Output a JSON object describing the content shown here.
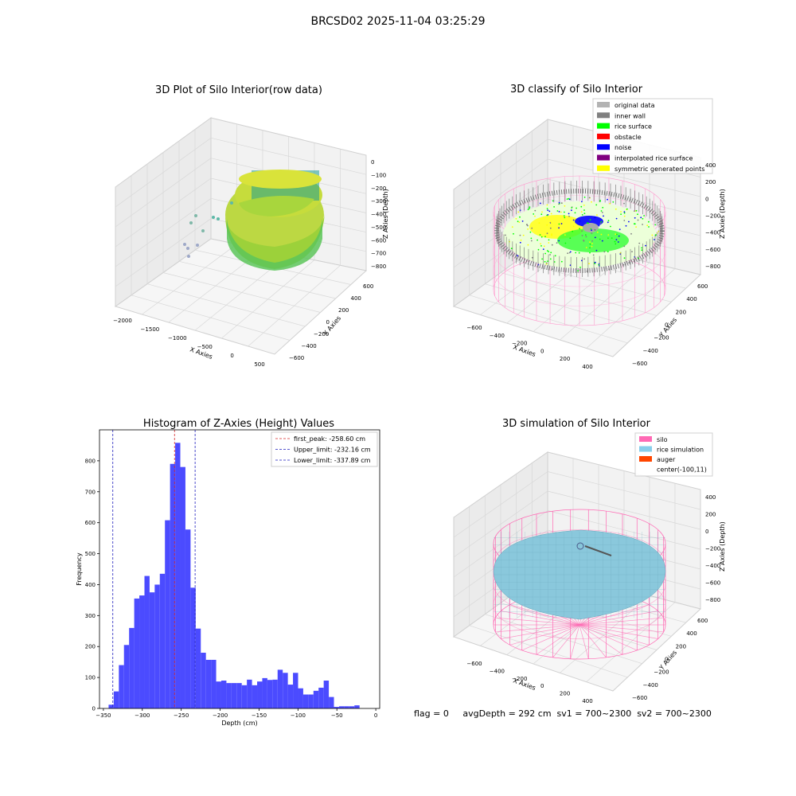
{
  "figure_title": "BRCSD02 2025-11-04 03:25:29",
  "status_line": "flag = 0     avgDepth = 292 cm  sv1 = 700~2300  sv2 = 700~2300",
  "colors": {
    "hist_bar": "#4b4bff",
    "first_peak_line": "#d62728",
    "limit_line": "#1f1fbf",
    "silo": "#ff69b4",
    "rice": "#87ceeb",
    "auger": "#ff4500",
    "original": "#b3b3b3",
    "inner_wall": "#808080",
    "rice_surface": "#00ff00",
    "obstacle": "#ff0000",
    "noise": "#0000ff",
    "interpolated": "#800080",
    "symmetric": "#ffff00"
  },
  "chart_data": [
    {
      "type": "scatter3d",
      "title": "3D Plot of Silo Interior(row data)",
      "xlabel": "X Axies",
      "ylabel": "Y Axies",
      "zlabel": "Z Axies (Depth)",
      "x_ticks": [
        "−2000",
        "−1500",
        "−1000",
        "−500",
        "0",
        "500"
      ],
      "y_ticks": [
        "600",
        "400",
        "200",
        "0",
        "−200",
        "−400",
        "−600"
      ],
      "z_ticks": [
        "0",
        "−100",
        "−200",
        "−300",
        "−400",
        "−500",
        "−600",
        "−700",
        "−800"
      ]
    },
    {
      "type": "scatter3d",
      "title": "3D classify of Silo Interior",
      "xlabel": "X Axies",
      "ylabel": "Y Axies",
      "zlabel": "Z Axies (Depth)",
      "x_ticks": [
        "−600",
        "−400",
        "−200",
        "0",
        "200",
        "400"
      ],
      "y_ticks": [
        "600",
        "400",
        "200",
        "0",
        "−200",
        "−400",
        "−600"
      ],
      "z_ticks": [
        "400",
        "200",
        "0",
        "−200",
        "−400",
        "−600",
        "−800"
      ],
      "legend": [
        "original data",
        "inner wall",
        "rice surface",
        "obstacle",
        "noise",
        "interpolated rice surface",
        "symmetric generated points"
      ]
    },
    {
      "type": "bar",
      "title": "Histogram of Z-Axies (Height) Values",
      "xlabel": "Depth (cm)",
      "ylabel": "Frequency",
      "xlim": [
        -355,
        5
      ],
      "ylim": [
        0,
        900
      ],
      "x_ticks": [
        -350,
        -300,
        -250,
        -200,
        -150,
        -100,
        -50,
        0
      ],
      "x_tick_labels": [
        "−350",
        "−300",
        "−250",
        "−200",
        "−150",
        "−100",
        "−50",
        "0"
      ],
      "y_ticks": [
        0,
        100,
        200,
        300,
        400,
        500,
        600,
        700,
        800
      ],
      "bin_start": -343.3,
      "bin_width": 6.58,
      "values": [
        12,
        55,
        140,
        205,
        260,
        355,
        365,
        428,
        375,
        400,
        435,
        608,
        790,
        858,
        780,
        578,
        390,
        258,
        180,
        157,
        157,
        87,
        90,
        82,
        82,
        82,
        75,
        93,
        75,
        87,
        98,
        92,
        93,
        125,
        115,
        77,
        115,
        65,
        45,
        45,
        57,
        67,
        90,
        37,
        5,
        7,
        7,
        7,
        10
      ],
      "vlines": [
        {
          "x": -258.6,
          "label": "first_peak: -258.60 cm"
        },
        {
          "x": -232.16,
          "label": "Upper_limit: -232.16 cm"
        },
        {
          "x": -337.89,
          "label": "Lower_limit: -337.89 cm"
        }
      ]
    },
    {
      "type": "surface3d",
      "title": "3D simulation of Silo Interior",
      "xlabel": "X Axies",
      "ylabel": "Y Axies",
      "zlabel": "Z Axies (Depth)",
      "x_ticks": [
        "−600",
        "−400",
        "−200",
        "0",
        "200",
        "400"
      ],
      "y_ticks": [
        "600",
        "400",
        "200",
        "0",
        "−200",
        "−400",
        "−600"
      ],
      "z_ticks": [
        "400",
        "200",
        "0",
        "−200",
        "−400",
        "−600",
        "−800"
      ],
      "legend": [
        "silo",
        "rice simulation",
        "auger",
        "center(-100,11)"
      ]
    }
  ]
}
